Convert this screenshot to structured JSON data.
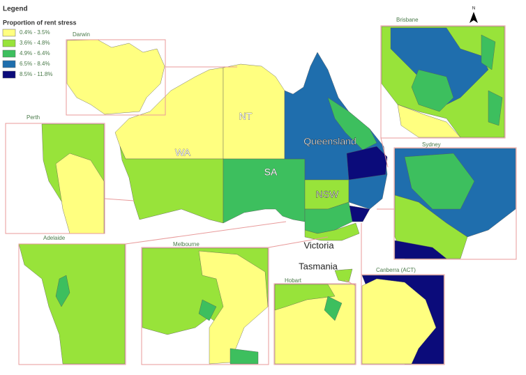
{
  "legend": {
    "title": "Legend",
    "subtitle": "Proportion of rent stress",
    "items": [
      {
        "label": "0.4% - 3.5%",
        "color": "#ffff80"
      },
      {
        "label": "3.6% - 4.8%",
        "color": "#98e33a"
      },
      {
        "label": "4.9% - 6.4%",
        "color": "#3dbf5e"
      },
      {
        "label": "6.5% - 8.4%",
        "color": "#1f6ead"
      },
      {
        "label": "8.5% - 11.8%",
        "color": "#0b0b7a"
      }
    ]
  },
  "north": "N",
  "states": [
    "NT",
    "WA",
    "SA",
    "Queensland",
    "NSW",
    "Victoria",
    "Tasmania"
  ],
  "insets": [
    "Darwin",
    "Perth",
    "Adelaide",
    "Melbourne",
    "Brisbane",
    "Sydney",
    "Hobart",
    "Canberra (ACT)"
  ]
}
